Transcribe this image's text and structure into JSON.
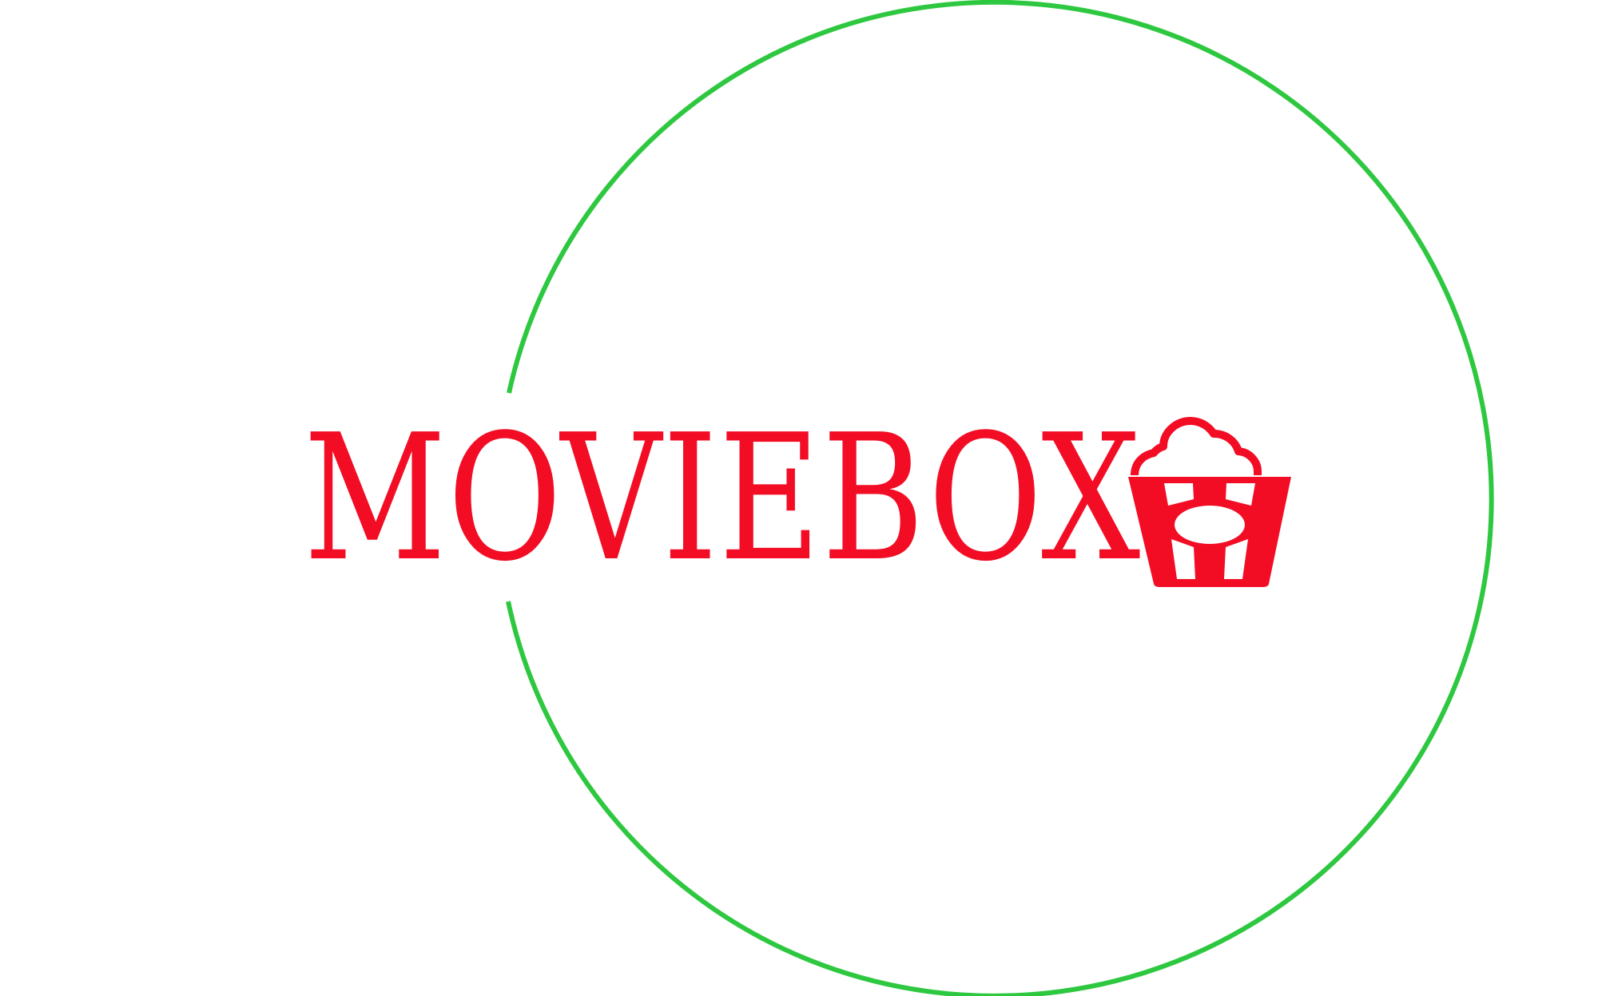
{
  "logo": {
    "wordmark": "MOVIEBOX",
    "icon": "popcorn-bucket-icon"
  },
  "colors": {
    "brand_red": "#f20d25",
    "ring_green": "#2ec840",
    "background": "#ffffff"
  }
}
